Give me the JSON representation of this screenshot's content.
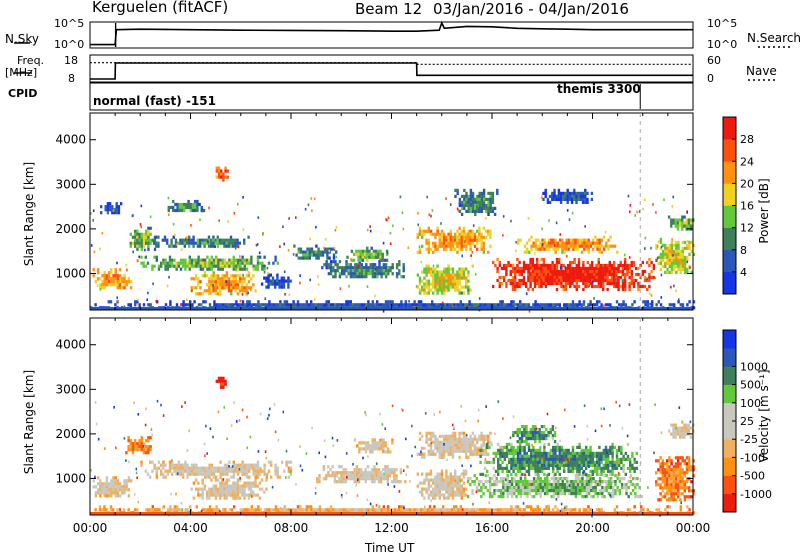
{
  "header": {
    "station": "Kerguelen (fitACF)",
    "beam": "Beam 12",
    "date_range": "03/Jan/2016 - 04/Jan/2016"
  },
  "strip": {
    "nsky_label": "N.Sky",
    "nsearch_label": "N.Search",
    "nsky_ticks": [
      "10^5",
      "10^0"
    ],
    "nsearch_ticks": [
      "10^5",
      "10^0"
    ],
    "freq_label_1": "Freq.",
    "freq_label_2": "[MHz]",
    "freq_ticks": [
      "18",
      "8"
    ],
    "nave_label": "Nave",
    "nave_ticks": [
      "60",
      "0"
    ],
    "cpid_label": "CPID",
    "cpid_left": "normal (fast) -151",
    "cpid_right": "themis 3300"
  },
  "time_axis": {
    "ticks": [
      "00:00",
      "04:00",
      "08:00",
      "12:00",
      "16:00",
      "20:00",
      "00:00"
    ],
    "label": "Time UT"
  },
  "colors": {
    "power": [
      "#1436e6",
      "#2a58b8",
      "#3f7f5a",
      "#62c83a",
      "#f0d020",
      "#ff9010",
      "#ff5010",
      "#ee1a10"
    ],
    "velocity": [
      "#ee1a10",
      "#ff5010",
      "#ff9010",
      "#f0b060",
      "#c8c8c0",
      "#c8c8c0",
      "#62c83a",
      "#3f7f5a",
      "#2a58b8",
      "#1436e6"
    ]
  },
  "chart_data": [
    {
      "type": "line",
      "name": "N.Sky / N.Search strip",
      "x_label": "",
      "y_ticks": [
        "10^5",
        "10^0"
      ],
      "x": [
        0,
        1,
        1.05,
        2,
        4,
        6,
        8,
        10,
        12,
        13,
        13.9,
        14,
        14.1,
        15,
        16,
        17,
        18,
        19,
        20,
        21,
        22,
        23,
        24
      ],
      "series": [
        {
          "name": "N.Sky",
          "values": [
            0.1,
            0.1,
            0.72,
            0.74,
            0.72,
            0.7,
            0.69,
            0.68,
            0.66,
            0.66,
            0.7,
            1.0,
            0.78,
            0.86,
            0.84,
            0.78,
            0.76,
            0.74,
            0.72,
            0.72,
            0.72,
            0.72,
            0.72
          ]
        }
      ]
    },
    {
      "type": "line",
      "name": "Freq / Nave strip",
      "ylim": [
        8,
        18
      ],
      "y_ticks": [
        "18",
        "8"
      ],
      "y2_ticks": [
        "60",
        "0"
      ],
      "x": [
        0,
        1,
        1.01,
        13,
        13.01,
        24
      ],
      "series": [
        {
          "name": "Freq.",
          "values": [
            8.8,
            8.8,
            15.2,
            15.2,
            10.3,
            10.3
          ]
        },
        {
          "name": "Nave",
          "values": [
            44,
            44,
            44,
            44,
            40,
            40
          ]
        }
      ]
    },
    {
      "type": "heatmap",
      "name": "power",
      "ylabel": "Slant Range [km]",
      "xlabel": "",
      "xlim": [
        0,
        24
      ],
      "ylim": [
        180,
        4600
      ],
      "yticks": [
        1000,
        2000,
        3000,
        4000
      ],
      "colorbar": {
        "label": "Power [dB]",
        "ticks": [
          4,
          8,
          12,
          16,
          20,
          24,
          28
        ],
        "range": [
          0,
          32
        ]
      },
      "regions": [
        {
          "t": [
            0.1,
            1.6
          ],
          "r": [
            650,
            1120
          ],
          "level": 5
        },
        {
          "t": [
            0.4,
            1.2
          ],
          "r": [
            2350,
            2600
          ],
          "level": 1
        },
        {
          "t": [
            1.4,
            2.6
          ],
          "r": [
            1550,
            2050
          ],
          "level": 3
        },
        {
          "t": [
            2.0,
            7.5
          ],
          "r": [
            1100,
            1400
          ],
          "level": 3
        },
        {
          "t": [
            2.5,
            6.3
          ],
          "r": [
            1600,
            1850
          ],
          "level": 2
        },
        {
          "t": [
            3.0,
            4.5
          ],
          "r": [
            2400,
            2650
          ],
          "level": 2
        },
        {
          "t": [
            4.0,
            6.6
          ],
          "r": [
            550,
            1050
          ],
          "level": 5
        },
        {
          "t": [
            5.0,
            5.5
          ],
          "r": [
            3100,
            3400
          ],
          "level": 6
        },
        {
          "t": [
            6.8,
            8.0
          ],
          "r": [
            700,
            1000
          ],
          "level": 1
        },
        {
          "t": [
            8.0,
            9.8
          ],
          "r": [
            1350,
            1650
          ],
          "level": 2
        },
        {
          "t": [
            9.2,
            12.6
          ],
          "r": [
            900,
            1300
          ],
          "level": 2
        },
        {
          "t": [
            10.2,
            11.8
          ],
          "r": [
            1300,
            1600
          ],
          "level": 3
        },
        {
          "t": [
            13.0,
            15.9
          ],
          "r": [
            1500,
            2050
          ],
          "level": 5
        },
        {
          "t": [
            13.0,
            15.2
          ],
          "r": [
            550,
            1200
          ],
          "level": 4
        },
        {
          "t": [
            14.5,
            16.2
          ],
          "r": [
            2300,
            2900
          ],
          "level": 2
        },
        {
          "t": [
            16.0,
            22.4
          ],
          "r": [
            650,
            1350
          ],
          "level": 7
        },
        {
          "t": [
            17.0,
            21.0
          ],
          "r": [
            1500,
            1850
          ],
          "level": 5
        },
        {
          "t": [
            18.0,
            20.0
          ],
          "r": [
            2600,
            2900
          ],
          "level": 1
        },
        {
          "t": [
            22.5,
            24.0
          ],
          "r": [
            1000,
            1800
          ],
          "level": 4
        },
        {
          "t": [
            23.0,
            24.0
          ],
          "r": [
            2000,
            2300
          ],
          "level": 3
        },
        {
          "t": [
            0.0,
            24.0
          ],
          "r": [
            200,
            400
          ],
          "level": 1
        }
      ]
    },
    {
      "type": "heatmap",
      "name": "velocity",
      "ylabel": "Slant Range [km]",
      "xlabel": "Time UT",
      "xlim": [
        0,
        24
      ],
      "ylim": [
        180,
        4600
      ],
      "yticks": [
        1000,
        2000,
        3000,
        4000
      ],
      "colorbar": {
        "label": "Velocity [m s⁻¹]",
        "ticks": [
          -1000,
          -500,
          -100,
          -25,
          25,
          100,
          500,
          1000
        ]
      },
      "regions": [
        {
          "t": [
            0.1,
            1.6
          ],
          "r": [
            600,
            1050
          ],
          "level": 4
        },
        {
          "t": [
            1.4,
            2.4
          ],
          "r": [
            1550,
            1950
          ],
          "level": 2
        },
        {
          "t": [
            2.0,
            8.0
          ],
          "r": [
            1050,
            1400
          ],
          "level": 4
        },
        {
          "t": [
            4.0,
            7.0
          ],
          "r": [
            550,
            1000
          ],
          "level": 4
        },
        {
          "t": [
            5.0,
            5.4
          ],
          "r": [
            3050,
            3350
          ],
          "level": 0
        },
        {
          "t": [
            9.0,
            12.6
          ],
          "r": [
            900,
            1300
          ],
          "level": 4
        },
        {
          "t": [
            10.5,
            12.0
          ],
          "r": [
            1600,
            1900
          ],
          "level": 4
        },
        {
          "t": [
            13.0,
            16.0
          ],
          "r": [
            1500,
            2050
          ],
          "level": 4
        },
        {
          "t": [
            13.0,
            15.0
          ],
          "r": [
            550,
            1200
          ],
          "level": 4
        },
        {
          "t": [
            15.0,
            22.0
          ],
          "r": [
            600,
            1100
          ],
          "level": 6
        },
        {
          "t": [
            15.5,
            21.8
          ],
          "r": [
            1100,
            1800
          ],
          "level": 7
        },
        {
          "t": [
            16.8,
            18.5
          ],
          "r": [
            1800,
            2200
          ],
          "level": 7
        },
        {
          "t": [
            22.4,
            24.0
          ],
          "r": [
            500,
            1500
          ],
          "level": 2
        },
        {
          "t": [
            23.0,
            24.0
          ],
          "r": [
            1900,
            2300
          ],
          "level": 4
        },
        {
          "t": [
            0.0,
            24.0
          ],
          "r": [
            200,
            400
          ],
          "level": 3
        }
      ]
    }
  ]
}
